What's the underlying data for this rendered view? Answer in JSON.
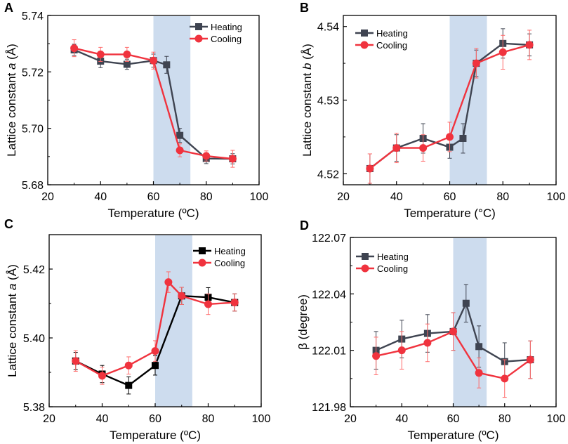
{
  "colors": {
    "heating_gray": "#3f4451",
    "heating_black": "#000000",
    "cooling": "#f0333e",
    "cooling_error": "#ff6b6b",
    "shade": "#cddcee",
    "axis": "#000000"
  },
  "chart_data": [
    {
      "panel_label": "A",
      "type": "line",
      "xlabel": "Temperature (ºC)",
      "ylabel_prefix": "Lattice constant ",
      "ylabel_var": "a",
      "ylabel_suffix": " (Å)",
      "xlim": [
        20,
        100
      ],
      "ylim": [
        5.68,
        5.74
      ],
      "xticks": [
        20,
        40,
        60,
        80,
        100
      ],
      "xtick_labels": [
        "20",
        "40",
        "60",
        "80",
        "100"
      ],
      "yticks": [
        5.68,
        5.7,
        5.72,
        5.74
      ],
      "ytick_labels": [
        "5.68",
        "5.70",
        "5.72",
        "5.74"
      ],
      "shaded_x": [
        60,
        74
      ],
      "heating_color": "gray",
      "series": [
        {
          "name": "Heating",
          "marker": "square",
          "x": [
            30,
            40,
            50,
            60,
            65,
            70,
            80,
            90
          ],
          "y": [
            5.7278,
            5.7238,
            5.7227,
            5.724,
            5.7225,
            5.6975,
            5.6893,
            5.6892
          ],
          "err": [
            0.002,
            0.0023,
            0.0018,
            0.0023,
            0.003,
            0.0025,
            0.0018,
            0.0018
          ]
        },
        {
          "name": "Cooling",
          "marker": "circle",
          "x": [
            30,
            40,
            50,
            60,
            70,
            80,
            90
          ],
          "y": [
            5.7284,
            5.7262,
            5.7262,
            5.724,
            5.6922,
            5.6902,
            5.6892
          ],
          "err": [
            0.003,
            0.0025,
            0.0025,
            0.003,
            0.0023,
            0.0018,
            0.003
          ]
        }
      ]
    },
    {
      "panel_label": "B",
      "type": "line",
      "xlabel": "Temperature (°C)",
      "ylabel_prefix": "Lattice constant ",
      "ylabel_var": "b",
      "ylabel_suffix": " (Å)",
      "xlim": [
        20,
        100
      ],
      "ylim": [
        4.5185,
        4.5415
      ],
      "xticks": [
        20,
        40,
        60,
        80,
        100
      ],
      "xtick_labels": [
        "20",
        "40",
        "60",
        "80",
        "100"
      ],
      "yticks": [
        4.52,
        4.53,
        4.54
      ],
      "ytick_labels": [
        "4.52",
        "4.53",
        "4.54"
      ],
      "shaded_x": [
        60,
        74
      ],
      "heating_color": "gray",
      "series": [
        {
          "name": "Heating",
          "marker": "square",
          "x": [
            30,
            40,
            50,
            60,
            65,
            70,
            80,
            90
          ],
          "y": [
            4.5207,
            4.5235,
            4.5248,
            4.5236,
            4.5248,
            4.535,
            4.5377,
            4.5375
          ],
          "err": [
            0.002,
            0.0018,
            0.002,
            0.0015,
            0.002,
            0.0018,
            0.002,
            0.0015
          ]
        },
        {
          "name": "Cooling",
          "marker": "circle",
          "x": [
            30,
            40,
            50,
            60,
            70,
            80,
            90
          ],
          "y": [
            4.5207,
            4.5235,
            4.5235,
            4.525,
            4.535,
            4.5365,
            4.5375
          ],
          "err": [
            0.002,
            0.002,
            0.0018,
            0.002,
            0.002,
            0.0023,
            0.002
          ]
        }
      ]
    },
    {
      "panel_label": "C",
      "type": "line",
      "xlabel": "Temperature (ºC)",
      "ylabel_prefix": "Lattice constant ",
      "ylabel_var": "a",
      "ylabel_suffix": " (Å)",
      "xlim": [
        20,
        100
      ],
      "ylim": [
        5.38,
        5.43
      ],
      "xticks": [
        20,
        40,
        60,
        80,
        100
      ],
      "xtick_labels": [
        "20",
        "40",
        "60",
        "80",
        "100"
      ],
      "yticks": [
        5.38,
        5.4,
        5.42
      ],
      "ytick_labels": [
        "5.38",
        "5.40",
        "5.42"
      ],
      "shaded_x": [
        60,
        74
      ],
      "heating_color": "black",
      "series": [
        {
          "name": "Heating",
          "marker": "square",
          "x": [
            30,
            40,
            50,
            60,
            70,
            80,
            90
          ],
          "y": [
            5.3933,
            5.3895,
            5.3862,
            5.392,
            5.4122,
            5.4118,
            5.4103
          ],
          "err": [
            0.0025,
            0.0025,
            0.0025,
            0.0028,
            0.0025,
            0.0028,
            0.0025
          ]
        },
        {
          "name": "Cooling",
          "marker": "circle",
          "x": [
            30,
            40,
            50,
            60,
            65,
            70,
            80,
            90
          ],
          "y": [
            5.3933,
            5.389,
            5.392,
            5.3962,
            5.4162,
            5.4122,
            5.4098,
            5.4103
          ],
          "err": [
            0.003,
            0.0025,
            0.0025,
            0.003,
            0.003,
            0.0025,
            0.003,
            0.0025
          ]
        }
      ]
    },
    {
      "panel_label": "D",
      "type": "line",
      "xlabel": "Temperature (ºC)",
      "ylabel_prefix": "β (degree)",
      "ylabel_var": "",
      "ylabel_suffix": "",
      "xlim": [
        20,
        100
      ],
      "ylim": [
        121.98,
        122.07
      ],
      "xticks": [
        20,
        40,
        60,
        80,
        100
      ],
      "xtick_labels": [
        "20",
        "40",
        "60",
        "80",
        "100"
      ],
      "yticks": [
        121.98,
        122.01,
        122.04,
        122.07
      ],
      "ytick_labels": [
        "121.98",
        "122.01",
        "122.04",
        "122.07"
      ],
      "shaded_x": [
        60,
        73
      ],
      "heating_color": "gray",
      "series": [
        {
          "name": "Heating",
          "marker": "square",
          "x": [
            30,
            40,
            50,
            60,
            65,
            70,
            80,
            90
          ],
          "y": [
            122.01,
            122.016,
            122.019,
            122.02,
            122.035,
            122.012,
            122.004,
            122.005
          ],
          "err": [
            0.01,
            0.01,
            0.01,
            0.01,
            0.01,
            0.011,
            0.01,
            0.01
          ]
        },
        {
          "name": "Cooling",
          "marker": "circle",
          "x": [
            30,
            40,
            50,
            60,
            70,
            80,
            90
          ],
          "y": [
            122.007,
            122.01,
            122.014,
            122.02,
            121.998,
            121.995,
            122.005
          ],
          "err": [
            0.01,
            0.01,
            0.01,
            0.01,
            0.008,
            0.01,
            0.01
          ]
        }
      ]
    }
  ]
}
